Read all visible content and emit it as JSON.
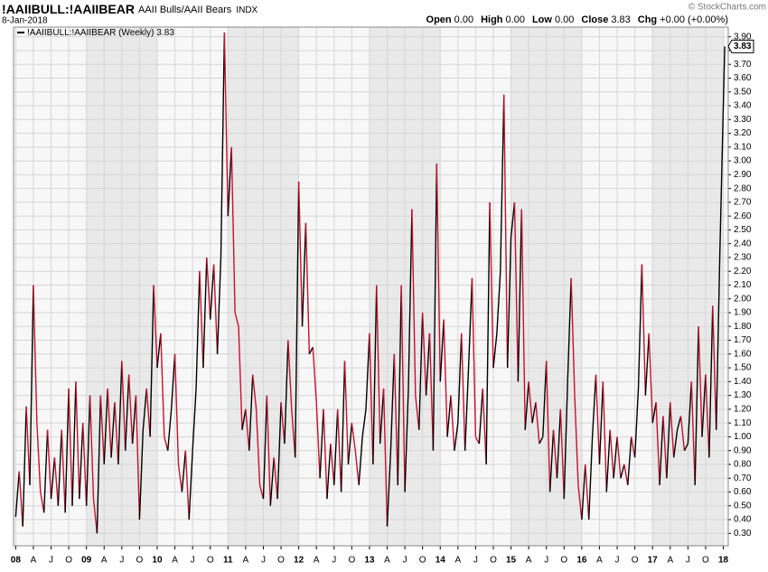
{
  "header": {
    "symbol": "!AAIIBULL:!AAIIBEAR",
    "name": "AAII Bulls/AAII Bears",
    "exchange": "INDX",
    "date": "8-Jan-2018",
    "copyright": "© StockCharts.com",
    "quote": [
      {
        "label": "Open",
        "value": "0.00"
      },
      {
        "label": "High",
        "value": "0.00"
      },
      {
        "label": "Low",
        "value": "0.00"
      },
      {
        "label": "Close",
        "value": "3.83"
      },
      {
        "label": "Chg",
        "value": "+0.00 (+0.00%)"
      }
    ]
  },
  "chart_data": {
    "type": "line",
    "x": [
      2008,
      2008.05,
      2008.1,
      2008.15,
      2008.2,
      2008.25,
      2008.3,
      2008.35,
      2008.4,
      2008.45,
      2008.5,
      2008.55,
      2008.6,
      2008.65,
      2008.7,
      2008.75,
      2008.8,
      2008.85,
      2008.9,
      2008.95,
      2009,
      2009.05,
      2009.1,
      2009.15,
      2009.2,
      2009.25,
      2009.3,
      2009.35,
      2009.4,
      2009.45,
      2009.5,
      2009.55,
      2009.6,
      2009.65,
      2009.7,
      2009.75,
      2009.8,
      2009.85,
      2009.9,
      2009.95,
      2010,
      2010.05,
      2010.1,
      2010.15,
      2010.2,
      2010.25,
      2010.3,
      2010.35,
      2010.4,
      2010.45,
      2010.5,
      2010.55,
      2010.6,
      2010.65,
      2010.7,
      2010.75,
      2010.8,
      2010.85,
      2010.9,
      2010.95,
      2011,
      2011.05,
      2011.1,
      2011.15,
      2011.2,
      2011.25,
      2011.3,
      2011.35,
      2011.4,
      2011.45,
      2011.5,
      2011.55,
      2011.6,
      2011.65,
      2011.7,
      2011.75,
      2011.8,
      2011.85,
      2011.9,
      2011.95,
      2012,
      2012.05,
      2012.1,
      2012.15,
      2012.2,
      2012.25,
      2012.3,
      2012.35,
      2012.4,
      2012.45,
      2012.5,
      2012.55,
      2012.6,
      2012.65,
      2012.7,
      2012.75,
      2012.8,
      2012.85,
      2012.9,
      2012.95,
      2013,
      2013.05,
      2013.1,
      2013.15,
      2013.2,
      2013.25,
      2013.3,
      2013.35,
      2013.4,
      2013.45,
      2013.5,
      2013.55,
      2013.6,
      2013.65,
      2013.7,
      2013.75,
      2013.8,
      2013.85,
      2013.9,
      2013.95,
      2014,
      2014.05,
      2014.1,
      2014.15,
      2014.2,
      2014.25,
      2014.3,
      2014.35,
      2014.4,
      2014.45,
      2014.5,
      2014.55,
      2014.6,
      2014.65,
      2014.7,
      2014.75,
      2014.8,
      2014.85,
      2014.9,
      2014.95,
      2015,
      2015.05,
      2015.1,
      2015.15,
      2015.2,
      2015.25,
      2015.3,
      2015.35,
      2015.4,
      2015.45,
      2015.5,
      2015.55,
      2015.6,
      2015.65,
      2015.7,
      2015.75,
      2015.8,
      2015.85,
      2015.9,
      2015.95,
      2016,
      2016.05,
      2016.1,
      2016.15,
      2016.2,
      2016.25,
      2016.3,
      2016.35,
      2016.4,
      2016.45,
      2016.5,
      2016.55,
      2016.6,
      2016.65,
      2016.7,
      2016.75,
      2016.8,
      2016.85,
      2016.9,
      2016.95,
      2017,
      2017.05,
      2017.1,
      2017.15,
      2017.2,
      2017.25,
      2017.3,
      2017.35,
      2017.4,
      2017.45,
      2017.5,
      2017.55,
      2017.6,
      2017.65,
      2017.7,
      2017.75,
      2017.8,
      2017.85,
      2017.9,
      2017.95,
      2018.02
    ],
    "series": [
      {
        "name": "!AAIIBULL:!AAIIBEAR (Weekly)",
        "values": [
          0.42,
          0.75,
          0.35,
          1.22,
          0.65,
          2.1,
          1.1,
          0.6,
          0.45,
          1.05,
          0.55,
          0.85,
          0.5,
          1.05,
          0.45,
          1.35,
          0.5,
          1.4,
          0.55,
          1.1,
          0.5,
          1.3,
          0.55,
          0.3,
          1.3,
          0.8,
          1.35,
          0.85,
          1.25,
          0.8,
          1.55,
          0.9,
          1.45,
          0.95,
          1.3,
          0.4,
          1.05,
          1.35,
          1.0,
          2.1,
          1.5,
          1.75,
          1.0,
          0.9,
          1.2,
          1.6,
          0.8,
          0.6,
          0.9,
          0.4,
          0.9,
          1.35,
          2.2,
          1.5,
          2.3,
          1.85,
          2.25,
          1.6,
          2.3,
          3.93,
          2.6,
          3.1,
          1.9,
          1.8,
          1.05,
          1.2,
          0.9,
          1.45,
          1.2,
          0.65,
          0.55,
          1.3,
          0.5,
          0.85,
          0.55,
          1.25,
          0.95,
          1.7,
          1.2,
          0.85,
          2.85,
          1.8,
          2.55,
          1.6,
          1.65,
          1.25,
          0.7,
          1.2,
          0.55,
          0.95,
          0.65,
          1.2,
          0.6,
          1.55,
          0.8,
          1.1,
          0.9,
          0.65,
          1.0,
          1.2,
          1.75,
          0.8,
          2.1,
          0.95,
          1.35,
          0.35,
          0.9,
          1.6,
          0.65,
          2.1,
          0.6,
          1.35,
          2.65,
          1.3,
          1.05,
          1.9,
          1.3,
          1.75,
          0.9,
          2.98,
          1.4,
          1.85,
          1.0,
          1.3,
          0.9,
          1.1,
          1.75,
          0.9,
          1.5,
          2.15,
          1.0,
          0.95,
          1.35,
          0.8,
          2.7,
          1.5,
          1.75,
          2.2,
          3.48,
          1.5,
          2.45,
          2.7,
          1.4,
          2.65,
          1.05,
          1.4,
          1.1,
          1.25,
          0.95,
          1.0,
          1.55,
          0.6,
          1.05,
          0.7,
          1.2,
          0.55,
          1.4,
          2.15,
          1.3,
          0.65,
          0.4,
          0.8,
          0.4,
          1.0,
          1.45,
          0.8,
          1.4,
          0.6,
          1.05,
          0.7,
          1.0,
          0.7,
          0.8,
          0.65,
          1.0,
          0.85,
          1.35,
          2.25,
          1.3,
          1.75,
          1.1,
          1.25,
          0.65,
          1.15,
          0.7,
          1.25,
          0.85,
          1.05,
          1.15,
          0.9,
          0.95,
          1.4,
          0.65,
          1.8,
          1.0,
          1.45,
          0.85,
          1.95,
          1.05,
          2.3,
          3.83
        ]
      }
    ],
    "up_color": "#000000",
    "down_color": "#c8102e",
    "xlim": [
      2007.97,
      2018.07
    ],
    "xticks": [
      {
        "value": 2008,
        "label": "08"
      },
      {
        "value": 2008.25,
        "label": "A"
      },
      {
        "value": 2008.5,
        "label": "J"
      },
      {
        "value": 2008.75,
        "label": "O"
      },
      {
        "value": 2009,
        "label": "09"
      },
      {
        "value": 2009.25,
        "label": "A"
      },
      {
        "value": 2009.5,
        "label": "J"
      },
      {
        "value": 2009.75,
        "label": "O"
      },
      {
        "value": 2010,
        "label": "10"
      },
      {
        "value": 2010.25,
        "label": "A"
      },
      {
        "value": 2010.5,
        "label": "J"
      },
      {
        "value": 2010.75,
        "label": "O"
      },
      {
        "value": 2011,
        "label": "11"
      },
      {
        "value": 2011.25,
        "label": "A"
      },
      {
        "value": 2011.5,
        "label": "J"
      },
      {
        "value": 2011.75,
        "label": "O"
      },
      {
        "value": 2012,
        "label": "12"
      },
      {
        "value": 2012.25,
        "label": "A"
      },
      {
        "value": 2012.5,
        "label": "J"
      },
      {
        "value": 2012.75,
        "label": "O"
      },
      {
        "value": 2013,
        "label": "13"
      },
      {
        "value": 2013.25,
        "label": "A"
      },
      {
        "value": 2013.5,
        "label": "J"
      },
      {
        "value": 2013.75,
        "label": "O"
      },
      {
        "value": 2014,
        "label": "14"
      },
      {
        "value": 2014.25,
        "label": "A"
      },
      {
        "value": 2014.5,
        "label": "J"
      },
      {
        "value": 2014.75,
        "label": "O"
      },
      {
        "value": 2015,
        "label": "15"
      },
      {
        "value": 2015.25,
        "label": "A"
      },
      {
        "value": 2015.5,
        "label": "J"
      },
      {
        "value": 2015.75,
        "label": "O"
      },
      {
        "value": 2016,
        "label": "16"
      },
      {
        "value": 2016.25,
        "label": "A"
      },
      {
        "value": 2016.5,
        "label": "J"
      },
      {
        "value": 2016.75,
        "label": "O"
      },
      {
        "value": 2017,
        "label": "17"
      },
      {
        "value": 2017.25,
        "label": "A"
      },
      {
        "value": 2017.5,
        "label": "J"
      },
      {
        "value": 2017.75,
        "label": "O"
      },
      {
        "value": 2018,
        "label": "18"
      }
    ],
    "ylim": [
      0.21,
      3.97
    ],
    "yticks": [
      {
        "value": 0.3,
        "label": "0.30"
      },
      {
        "value": 0.4,
        "label": "0.40"
      },
      {
        "value": 0.5,
        "label": "0.50"
      },
      {
        "value": 0.6,
        "label": "0.60"
      },
      {
        "value": 0.7,
        "label": "0.70"
      },
      {
        "value": 0.8,
        "label": "0.80"
      },
      {
        "value": 0.9,
        "label": "0.90"
      },
      {
        "value": 1,
        "label": "1.00"
      },
      {
        "value": 1.1,
        "label": "1.10"
      },
      {
        "value": 1.2,
        "label": "1.20"
      },
      {
        "value": 1.3,
        "label": "1.30"
      },
      {
        "value": 1.4,
        "label": "1.40"
      },
      {
        "value": 1.5,
        "label": "1.50"
      },
      {
        "value": 1.6,
        "label": "1.60"
      },
      {
        "value": 1.7,
        "label": "1.70"
      },
      {
        "value": 1.8,
        "label": "1.80"
      },
      {
        "value": 1.9,
        "label": "1.90"
      },
      {
        "value": 2,
        "label": "2.00"
      },
      {
        "value": 2.1,
        "label": "2.10"
      },
      {
        "value": 2.2,
        "label": "2.20"
      },
      {
        "value": 2.3,
        "label": "2.30"
      },
      {
        "value": 2.4,
        "label": "2.40"
      },
      {
        "value": 2.5,
        "label": "2.50"
      },
      {
        "value": 2.6,
        "label": "2.60"
      },
      {
        "value": 2.7,
        "label": "2.70"
      },
      {
        "value": 2.8,
        "label": "2.80"
      },
      {
        "value": 2.9,
        "label": "2.90"
      },
      {
        "value": 3,
        "label": "3.00"
      },
      {
        "value": 3.1,
        "label": "3.10"
      },
      {
        "value": 3.2,
        "label": "3.20"
      },
      {
        "value": 3.3,
        "label": "3.30"
      },
      {
        "value": 3.4,
        "label": "3.40"
      },
      {
        "value": 3.5,
        "label": "3.50"
      },
      {
        "value": 3.6,
        "label": "3.60"
      },
      {
        "value": 3.7,
        "label": "3.70"
      },
      {
        "value": 3.8,
        "label": "3.80"
      },
      {
        "value": 3.9,
        "label": "3.90"
      }
    ],
    "grid": true
  }
}
